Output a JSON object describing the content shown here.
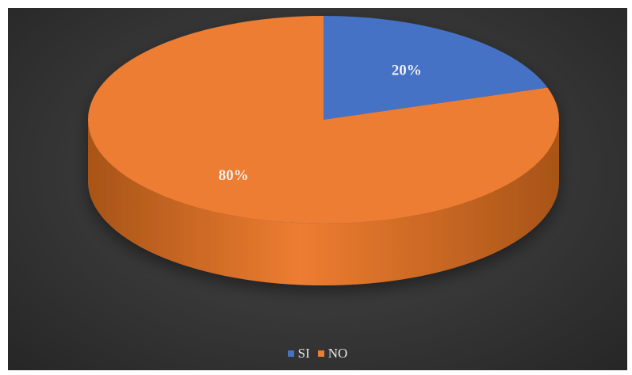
{
  "chart_data": {
    "type": "pie",
    "style": "3d",
    "title": "",
    "categories": [
      "SI",
      "NO"
    ],
    "values": [
      20,
      80
    ],
    "data_labels": [
      "20%",
      "80%"
    ],
    "colors": [
      "#4472C4",
      "#ED7D31"
    ],
    "side_colors": [
      "#2f5597",
      "#a85418"
    ],
    "legend": {
      "position": "bottom",
      "entries": [
        "SI",
        "NO"
      ]
    },
    "background": "dark-gradient"
  }
}
